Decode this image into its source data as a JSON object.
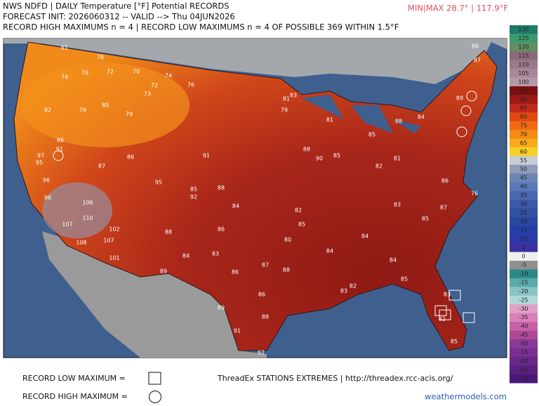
{
  "header": {
    "title": "NWS NDFD | DAILY Temperature [°F] Potential RECORDS",
    "init": "FORECAST INIT: 2026060312 -- VALID --> Thu 04JUN2026",
    "counts": "RECORD HIGH MAXIMUMS n = 4 | RECORD LOW MAXIMUMS n = 4 OF POSSIBLE 369 WITHIN 1.5°F",
    "minmax": "MIN|MAX 28.7° | 117.9°F"
  },
  "stations": [
    61,
    78,
    74,
    79,
    72,
    70,
    74,
    76,
    73,
    72,
    82,
    76,
    80,
    79,
    86,
    97,
    91,
    95,
    87,
    86,
    96,
    96,
    106,
    110,
    107,
    108,
    102,
    107,
    101,
    95,
    92,
    85,
    88,
    91,
    84,
    88,
    84,
    89,
    86,
    83,
    89,
    91,
    92,
    88,
    86,
    86,
    87,
    88,
    85,
    82,
    80,
    84,
    84,
    83,
    82,
    84,
    85,
    85,
    87,
    86,
    76,
    82,
    85,
    90,
    88,
    81,
    83,
    79,
    81,
    85,
    84,
    89,
    87,
    86,
    88,
    81,
    83,
    85,
    82,
    83
  ],
  "colorbar": {
    "ticks": [
      130,
      125,
      120,
      115,
      110,
      105,
      100,
      95,
      90,
      85,
      80,
      75,
      70,
      65,
      60,
      55,
      50,
      45,
      40,
      35,
      30,
      25,
      20,
      15,
      10,
      5,
      0,
      -5,
      -10,
      -15,
      -20,
      -25,
      -30,
      -35,
      -40,
      -45,
      -50,
      -55,
      -60,
      -65,
      -70
    ],
    "colors": [
      "#1f7a6a",
      "#3d9a6e",
      "#5f8f5f",
      "#8c6a7c",
      "#9a7a8c",
      "#a88898",
      "#b49aa8",
      "#7a0f12",
      "#9a1a18",
      "#c02a1a",
      "#e04a12",
      "#ef6a10",
      "#f58a14",
      "#f8aa1c",
      "#f6d028",
      "#c8ccd4",
      "#8e9cb8",
      "#6c84b4",
      "#5a78b8",
      "#4a68b0",
      "#3c5aa8",
      "#3050a0",
      "#2848a0",
      "#2440a8",
      "#2a3aa8",
      "#3a30a0",
      "#f0f0f0",
      "#909090",
      "#2a8a8a",
      "#5aaaaa",
      "#88c4c4",
      "#b0d8d8",
      "#e0a0c8",
      "#d880b8",
      "#c860a8",
      "#b04898",
      "#8a3a98",
      "#7a3090",
      "#6a2888",
      "#5a2080",
      "#4a1878"
    ]
  },
  "footer": {
    "low": "RECORD LOW MAXIMUM =",
    "high": "RECORD HIGH MAXIMUM =",
    "source": "ThreadEx STATIONS EXTREMES | http://threadex.rcc-acis.org/",
    "brand": "weathermodels.com"
  }
}
